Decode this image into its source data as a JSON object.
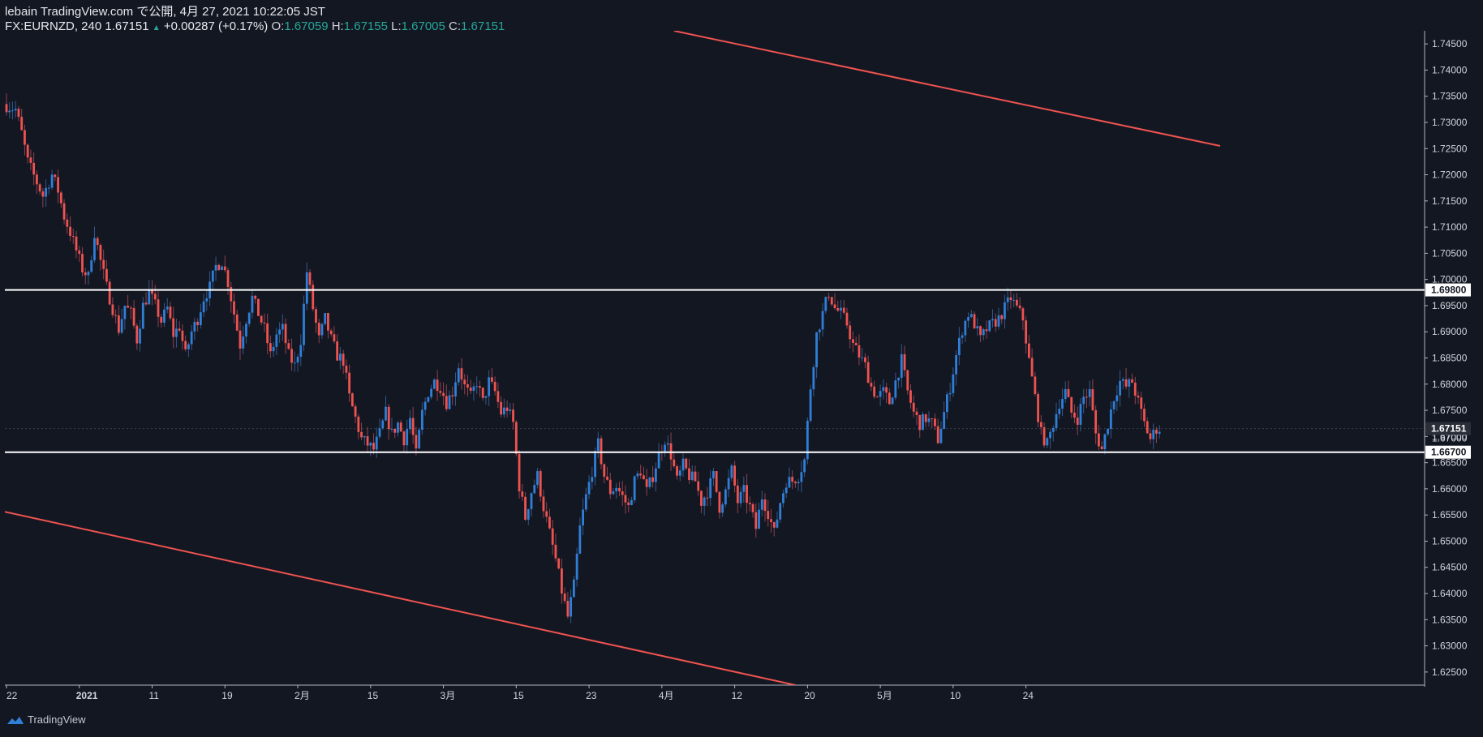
{
  "header": {
    "line1": "lebain TradingView.com で公開, 4月 27, 2021 10:22:05 JST",
    "symbol": "FX:EURNZD, 240",
    "last": "1.67151",
    "change_arrow": "▲",
    "change": "+0.00287 (+0.17%)",
    "o_label": "O:",
    "o": "1.67059",
    "h_label": "H:",
    "h": "1.67155",
    "l_label": "L:",
    "l": "1.67005",
    "c_label": "C:",
    "c": "1.67151"
  },
  "watermark": "TradingView",
  "colors": {
    "background": "#131722",
    "up": "#2f7fd8",
    "down": "#ef5350",
    "trendline": "#ef5350",
    "level": "#ffffff",
    "axis_text": "#d1d4dc",
    "accent_green": "#26a69a"
  },
  "chart_data": {
    "type": "candlestick",
    "symbol": "FX:EURNZD",
    "interval": "240",
    "ylim": [
      1.6225,
      1.7475
    ],
    "y_ticks": [
      "1.74500",
      "1.74000",
      "1.73500",
      "1.73000",
      "1.72500",
      "1.72000",
      "1.71500",
      "1.71000",
      "1.70500",
      "1.70000",
      "1.69500",
      "1.69000",
      "1.68500",
      "1.68000",
      "1.67500",
      "1.67000",
      "1.66500",
      "1.66000",
      "1.65500",
      "1.65000",
      "1.64500",
      "1.64000",
      "1.63500",
      "1.63000",
      "1.62500"
    ],
    "x_ticks": [
      {
        "label": "22",
        "bold": false
      },
      {
        "label": "2021",
        "bold": true
      },
      {
        "label": "11",
        "bold": false
      },
      {
        "label": "19",
        "bold": false
      },
      {
        "label": "2月",
        "bold": false
      },
      {
        "label": "15",
        "bold": false
      },
      {
        "label": "3月",
        "bold": false
      },
      {
        "label": "15",
        "bold": false
      },
      {
        "label": "23",
        "bold": false
      },
      {
        "label": "4月",
        "bold": false
      },
      {
        "label": "12",
        "bold": false
      },
      {
        "label": "20",
        "bold": false
      },
      {
        "label": "5月",
        "bold": false
      },
      {
        "label": "10",
        "bold": false
      },
      {
        "label": "24",
        "bold": false
      }
    ],
    "tick_index": [
      0,
      24,
      48,
      72,
      96,
      120,
      144,
      168,
      192,
      216,
      240,
      264,
      288,
      312,
      336
    ],
    "levels": [
      {
        "value": 1.698,
        "label": "1.69800"
      },
      {
        "value": 1.667,
        "label": "1.66700"
      }
    ],
    "last_price": {
      "value": 1.67151,
      "label": "1.67151"
    },
    "hidden_axis_label": "1.67000",
    "trendlines": [
      {
        "from": {
          "i": 220,
          "y": 1.7475
        },
        "to": {
          "i": 400,
          "y": 1.7255
        }
      },
      {
        "from": {
          "i": -2,
          "y": 1.6558
        },
        "to": {
          "i": 260,
          "y": 1.6225
        }
      }
    ],
    "path": [
      [
        0,
        1.7335
      ],
      [
        4,
        1.7325
      ],
      [
        6,
        1.728
      ],
      [
        8,
        1.7225
      ],
      [
        11,
        1.7185
      ],
      [
        13,
        1.716
      ],
      [
        16,
        1.72
      ],
      [
        18,
        1.717
      ],
      [
        20,
        1.712
      ],
      [
        22,
        1.709
      ],
      [
        24,
        1.7055
      ],
      [
        26,
        1.702
      ],
      [
        28,
        1.7005
      ],
      [
        30,
        1.709
      ],
      [
        32,
        1.7035
      ],
      [
        34,
        1.6985
      ],
      [
        36,
        1.6945
      ],
      [
        38,
        1.6905
      ],
      [
        40,
        1.695
      ],
      [
        42,
        1.6935
      ],
      [
        44,
        1.6885
      ],
      [
        46,
        1.695
      ],
      [
        48,
        1.6975
      ],
      [
        50,
        1.695
      ],
      [
        52,
        1.692
      ],
      [
        54,
        1.6945
      ],
      [
        56,
        1.6895
      ],
      [
        58,
        1.691
      ],
      [
        60,
        1.6855
      ],
      [
        62,
        1.69
      ],
      [
        64,
        1.6925
      ],
      [
        66,
        1.6965
      ],
      [
        68,
        1.6985
      ],
      [
        70,
        1.7025
      ],
      [
        72,
        1.7035
      ],
      [
        74,
        1.6995
      ],
      [
        76,
        1.6935
      ],
      [
        78,
        1.6875
      ],
      [
        80,
        1.6925
      ],
      [
        82,
        1.6965
      ],
      [
        84,
        1.6935
      ],
      [
        86,
        1.6905
      ],
      [
        88,
        1.6855
      ],
      [
        90,
        1.6895
      ],
      [
        92,
        1.6905
      ],
      [
        94,
        1.6855
      ],
      [
        96,
        1.6835
      ],
      [
        98,
        1.6885
      ],
      [
        100,
        1.7015
      ],
      [
        102,
        1.6945
      ],
      [
        104,
        1.6885
      ],
      [
        106,
        1.6925
      ],
      [
        108,
        1.6885
      ],
      [
        110,
        1.6855
      ],
      [
        112,
        1.6845
      ],
      [
        114,
        1.6775
      ],
      [
        116,
        1.6735
      ],
      [
        118,
        1.6695
      ],
      [
        120,
        1.6685
      ],
      [
        122,
        1.6675
      ],
      [
        124,
        1.6705
      ],
      [
        126,
        1.6745
      ],
      [
        128,
        1.6705
      ],
      [
        130,
        1.6725
      ],
      [
        132,
        1.6695
      ],
      [
        134,
        1.6735
      ],
      [
        136,
        1.6665
      ],
      [
        138,
        1.6745
      ],
      [
        140,
        1.6785
      ],
      [
        142,
        1.6805
      ],
      [
        144,
        1.6795
      ],
      [
        146,
        1.6765
      ],
      [
        148,
        1.6785
      ],
      [
        150,
        1.6835
      ],
      [
        152,
        1.6795
      ],
      [
        154,
        1.6775
      ],
      [
        156,
        1.6805
      ],
      [
        158,
        1.6765
      ],
      [
        160,
        1.6805
      ],
      [
        162,
        1.6785
      ],
      [
        164,
        1.6745
      ],
      [
        166,
        1.6755
      ],
      [
        168,
        1.6725
      ],
      [
        170,
        1.6605
      ],
      [
        172,
        1.6545
      ],
      [
        174,
        1.6595
      ],
      [
        176,
        1.6625
      ],
      [
        178,
        1.6565
      ],
      [
        180,
        1.6515
      ],
      [
        182,
        1.6465
      ],
      [
        184,
        1.6405
      ],
      [
        186,
        1.6355
      ],
      [
        188,
        1.6415
      ],
      [
        190,
        1.6525
      ],
      [
        192,
        1.6585
      ],
      [
        194,
        1.6635
      ],
      [
        196,
        1.6685
      ],
      [
        198,
        1.6625
      ],
      [
        200,
        1.6595
      ],
      [
        202,
        1.6605
      ],
      [
        204,
        1.6585
      ],
      [
        206,
        1.6565
      ],
      [
        208,
        1.6615
      ],
      [
        210,
        1.6635
      ],
      [
        212,
        1.6595
      ],
      [
        214,
        1.6625
      ],
      [
        216,
        1.6665
      ],
      [
        218,
        1.6695
      ],
      [
        220,
        1.6665
      ],
      [
        222,
        1.6615
      ],
      [
        224,
        1.6645
      ],
      [
        226,
        1.6625
      ],
      [
        228,
        1.6615
      ],
      [
        230,
        1.6575
      ],
      [
        232,
        1.6595
      ],
      [
        234,
        1.6625
      ],
      [
        236,
        1.6565
      ],
      [
        238,
        1.6595
      ],
      [
        240,
        1.6635
      ],
      [
        242,
        1.6575
      ],
      [
        244,
        1.6595
      ],
      [
        246,
        1.6565
      ],
      [
        248,
        1.6525
      ],
      [
        250,
        1.6585
      ],
      [
        252,
        1.6555
      ],
      [
        254,
        1.6515
      ],
      [
        256,
        1.6575
      ],
      [
        258,
        1.6615
      ],
      [
        260,
        1.6615
      ],
      [
        262,
        1.6625
      ],
      [
        264,
        1.6655
      ],
      [
        266,
        1.6795
      ],
      [
        268,
        1.6895
      ],
      [
        270,
        1.6935
      ],
      [
        272,
        1.6975
      ],
      [
        274,
        1.6945
      ],
      [
        276,
        1.6935
      ],
      [
        278,
        1.6915
      ],
      [
        280,
        1.6875
      ],
      [
        282,
        1.6855
      ],
      [
        284,
        1.6835
      ],
      [
        286,
        1.6795
      ],
      [
        288,
        1.6775
      ],
      [
        290,
        1.6785
      ],
      [
        292,
        1.6765
      ],
      [
        294,
        1.6805
      ],
      [
        296,
        1.6845
      ],
      [
        298,
        1.6785
      ],
      [
        300,
        1.6745
      ],
      [
        302,
        1.6725
      ],
      [
        304,
        1.6735
      ],
      [
        306,
        1.6725
      ],
      [
        308,
        1.6695
      ],
      [
        310,
        1.6745
      ],
      [
        312,
        1.6795
      ],
      [
        314,
        1.6855
      ],
      [
        316,
        1.6905
      ],
      [
        318,
        1.6935
      ],
      [
        320,
        1.6915
      ],
      [
        322,
        1.6885
      ],
      [
        324,
        1.6905
      ],
      [
        326,
        1.6915
      ],
      [
        328,
        1.6925
      ],
      [
        330,
        1.6945
      ],
      [
        332,
        1.6965
      ],
      [
        334,
        1.6945
      ],
      [
        336,
        1.6925
      ],
      [
        338,
        1.6845
      ],
      [
        340,
        1.6775
      ],
      [
        342,
        1.6705
      ],
      [
        344,
        1.6685
      ],
      [
        346,
        1.6725
      ],
      [
        348,
        1.6765
      ],
      [
        350,
        1.6785
      ],
      [
        352,
        1.6745
      ],
      [
        354,
        1.6735
      ],
      [
        356,
        1.6775
      ],
      [
        358,
        1.6785
      ],
      [
        360,
        1.6705
      ],
      [
        362,
        1.6675
      ],
      [
        364,
        1.6725
      ],
      [
        366,
        1.6775
      ],
      [
        368,
        1.6805
      ],
      [
        370,
        1.6795
      ],
      [
        372,
        1.6805
      ],
      [
        374,
        1.6765
      ],
      [
        376,
        1.6725
      ],
      [
        378,
        1.6695
      ],
      [
        380,
        1.6715
      ]
    ]
  }
}
